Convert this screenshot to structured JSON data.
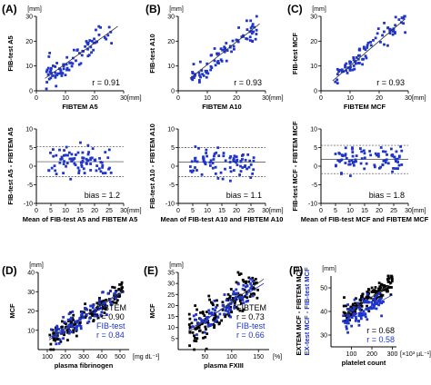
{
  "colors": {
    "black": "#000000",
    "blue": "#1f35c9",
    "line": "#333333"
  },
  "chart_data": [
    {
      "panel": "(A)",
      "type": "scatter",
      "ylabel": "FIB-test A5",
      "xlabel": "FIBTEM A5",
      "xunit": "[mm]",
      "yunit": "[mm]",
      "xlim": [
        0,
        30
      ],
      "ylim": [
        0,
        30
      ],
      "xticks": [
        "0",
        "10",
        "20",
        "30"
      ],
      "yticks": [
        "0",
        "10",
        "20",
        "30"
      ],
      "annotation": "r = 0.91",
      "fit": [
        [
          3,
          5
        ],
        [
          28,
          26
        ]
      ],
      "series": [
        {
          "color": "blue",
          "spread": 2.5,
          "fit": [
            [
              3,
              5
            ],
            [
              28,
              26
            ]
          ],
          "count": 85,
          "xrange": [
            3,
            26
          ],
          "seed": 11
        }
      ]
    },
    {
      "panel": "(B)",
      "type": "scatter",
      "ylabel": "FIB-test A10",
      "xlabel": "FIBTEM A10",
      "xunit": "[mm]",
      "yunit": "[mm]",
      "xlim": [
        0,
        30
      ],
      "ylim": [
        0,
        30
      ],
      "xticks": [
        "0",
        "10",
        "20",
        "30"
      ],
      "yticks": [
        "0",
        "10",
        "20",
        "30"
      ],
      "annotation": "r = 0.93",
      "fit": [
        [
          4,
          5
        ],
        [
          28,
          27
        ]
      ],
      "series": [
        {
          "color": "blue",
          "spread": 2.2,
          "fit": [
            [
              4,
              5
            ],
            [
              28,
              27
            ]
          ],
          "count": 85,
          "xrange": [
            4,
            27
          ],
          "seed": 23
        }
      ]
    },
    {
      "panel": "(C)",
      "type": "scatter",
      "ylabel": "FIB-test MCF",
      "xlabel": "FIBTEM MCF",
      "xunit": "[mm]",
      "yunit": "[mm]",
      "xlim": [
        0,
        30
      ],
      "ylim": [
        0,
        30
      ],
      "xticks": [
        "0",
        "10",
        "20",
        "30"
      ],
      "yticks": [
        "0",
        "10",
        "20",
        "30"
      ],
      "annotation": "r = 0.93",
      "fit": [
        [
          4,
          4
        ],
        [
          29,
          29
        ]
      ],
      "series": [
        {
          "color": "blue",
          "spread": 2.3,
          "fit": [
            [
              4,
              4
            ],
            [
              29,
              29
            ]
          ],
          "count": 85,
          "xrange": [
            4,
            29
          ],
          "seed": 37
        }
      ]
    },
    {
      "type": "scatter",
      "ylabel": "FIB-test A5 - FIBTEM A5",
      "xlabel": "Mean of FIB-test A5 and FIBTEM A5",
      "xunit": "[mm]",
      "yunit": "",
      "xlim": [
        0,
        30
      ],
      "ylim": [
        -10,
        10
      ],
      "xticks": [
        "0",
        "5",
        "10",
        "15",
        "20",
        "25",
        "30"
      ],
      "yticks": [
        "-10",
        "-5",
        "0",
        "5",
        "10"
      ],
      "annotation": "bias = 1.2",
      "hlines": [
        5.2,
        1.2,
        -2.8
      ],
      "series": [
        {
          "color": "blue",
          "spread": 2.0,
          "center": 1.2,
          "count": 85,
          "xrange": [
            4,
            26
          ],
          "seed": 41
        }
      ]
    },
    {
      "type": "scatter",
      "ylabel": "FIB-test A10 - FIBTEM A10",
      "xlabel": "Mean of FIB-test A10 and FIBTEM A10",
      "xunit": "[mm]",
      "yunit": "",
      "xlim": [
        0,
        30
      ],
      "ylim": [
        -10,
        10
      ],
      "xticks": [
        "0",
        "5",
        "10",
        "15",
        "20",
        "25",
        "30"
      ],
      "yticks": [
        "-10",
        "-5",
        "0",
        "5",
        "10"
      ],
      "annotation": "bias = 1.1",
      "hlines": [
        5.0,
        1.1,
        -2.8
      ],
      "series": [
        {
          "color": "blue",
          "spread": 1.9,
          "center": 1.1,
          "count": 85,
          "xrange": [
            4,
            26
          ],
          "seed": 53
        }
      ]
    },
    {
      "type": "scatter",
      "ylabel": "FIB-test MCF - FIBTEM MCF",
      "xlabel": "Mean of FIB-test MCF and FIBTEM MCF",
      "xunit": "[mm]",
      "yunit": "",
      "xlim": [
        0,
        30
      ],
      "ylim": [
        -10,
        10
      ],
      "xticks": [
        "0",
        "5",
        "10",
        "15",
        "20",
        "25",
        "30"
      ],
      "yticks": [
        "-10",
        "-5",
        "0",
        "5",
        "10"
      ],
      "annotation": "bias = 1.8",
      "hlines": [
        5.6,
        1.8,
        -2.0
      ],
      "series": [
        {
          "color": "blue",
          "spread": 1.9,
          "center": 1.8,
          "count": 85,
          "xrange": [
            5,
            28
          ],
          "seed": 67
        }
      ]
    },
    {
      "panel": "(D)",
      "type": "scatter",
      "ylabel": "MCF",
      "xlabel": "plasma fibrinogen",
      "xunit": "[mg dL⁻¹]",
      "yunit": "[mm]",
      "xlim": [
        50,
        550
      ],
      "ylim": [
        0,
        40
      ],
      "xticks": [
        "100",
        "200",
        "300",
        "400",
        "500"
      ],
      "yticks": [
        "10",
        "20",
        "30",
        "40"
      ],
      "legend": [
        {
          "name": "FIBTEM",
          "r": "r = 0.90",
          "color": "black"
        },
        {
          "name": "FIB-test",
          "r": "r = 0.84",
          "color": "blue"
        }
      ],
      "series": [
        {
          "color": "black",
          "spread": 3.0,
          "fit": [
            [
              110,
              5
            ],
            [
              520,
              31
            ]
          ],
          "count": 150,
          "xrange": [
            110,
            520
          ],
          "seed": 71
        },
        {
          "color": "blue",
          "spread": 3.0,
          "fit": [
            [
              110,
              6
            ],
            [
              520,
              30
            ]
          ],
          "count": 80,
          "xrange": [
            120,
            480
          ],
          "seed": 79
        }
      ]
    },
    {
      "panel": "(E)",
      "type": "scatter",
      "ylabel": "MCF",
      "xlabel": "plasma FXIII",
      "xunit": "[%]",
      "yunit": "[mm]",
      "xlim": [
        0,
        170
      ],
      "ylim": [
        0,
        35
      ],
      "xticks": [
        "50",
        "100",
        "150"
      ],
      "yticks": [
        "5",
        "10",
        "15",
        "20",
        "25",
        "30",
        "35"
      ],
      "legend": [
        {
          "name": "FIBTEM",
          "r": "r = 0.73",
          "color": "black"
        },
        {
          "name": "FIB-test",
          "r": "r = 0.66",
          "color": "blue"
        }
      ],
      "series": [
        {
          "color": "black",
          "spread": 4.0,
          "fit": [
            [
              20,
              8
            ],
            [
              160,
              32
            ]
          ],
          "count": 150,
          "xrange": [
            20,
            150
          ],
          "seed": 83
        },
        {
          "color": "blue",
          "spread": 3.5,
          "fit": [
            [
              20,
              9
            ],
            [
              160,
              30
            ]
          ],
          "count": 80,
          "xrange": [
            25,
            140
          ],
          "seed": 89
        }
      ]
    },
    {
      "panel": "(F)",
      "type": "scatter",
      "ylabel": "EXTEM MCF - FIBTEM MCF",
      "ylabel2": "EX-test MCF - FIB-test MCF",
      "xlabel": "platelet count",
      "xunit": "[×10³ µL⁻¹]",
      "yunit": "[mm]",
      "xlim": [
        0,
        320
      ],
      "ylim": [
        25,
        55
      ],
      "xticks": [
        "100",
        "200",
        "300"
      ],
      "yticks": [
        "30",
        "40",
        "50"
      ],
      "legend": [
        {
          "name": "",
          "r": "r = 0.68",
          "color": "black"
        },
        {
          "name": "",
          "r": "r = 0.58",
          "color": "blue"
        }
      ],
      "series": [
        {
          "color": "black",
          "spread": 2.5,
          "fit": [
            [
              60,
              38
            ],
            [
              300,
              52
            ]
          ],
          "count": 150,
          "xrange": [
            60,
            300
          ],
          "seed": 97
        },
        {
          "color": "blue",
          "spread": 2.5,
          "fit": [
            [
              60,
              36
            ],
            [
              300,
              47
            ]
          ],
          "count": 90,
          "xrange": [
            60,
            260
          ],
          "seed": 101
        }
      ]
    }
  ]
}
